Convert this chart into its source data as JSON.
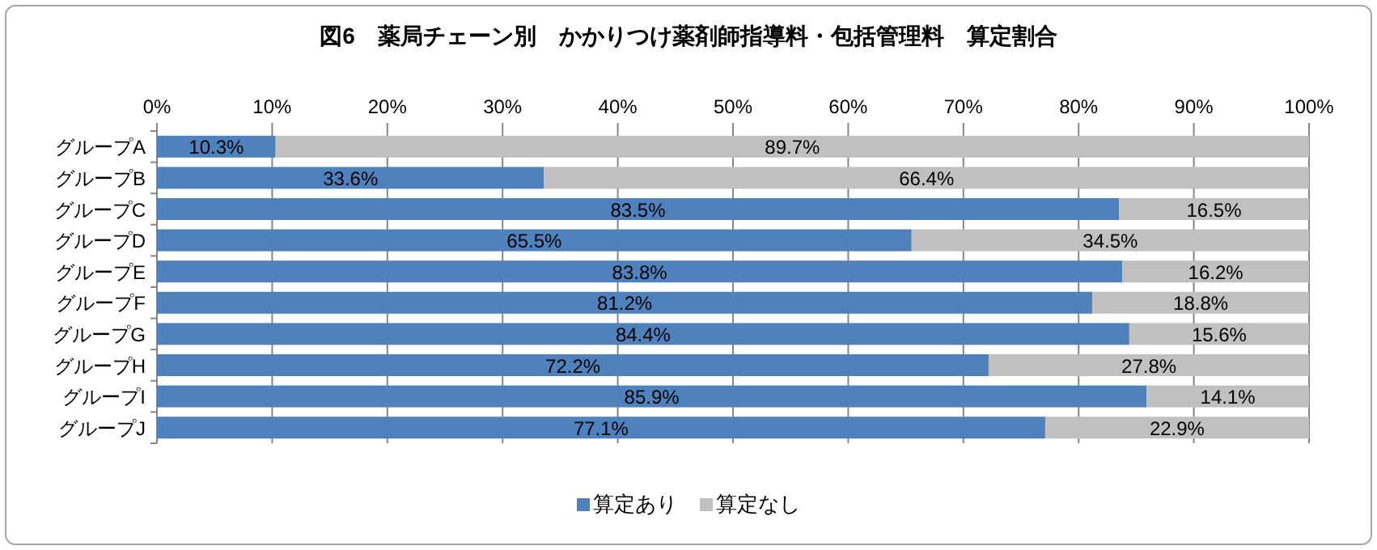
{
  "chart_data": {
    "type": "bar",
    "orientation": "horizontal",
    "stacked": true,
    "title": "図6　薬局チェーン別　かかりつけ薬剤師指導料・包括管理料　算定割合",
    "categories": [
      "グループA",
      "グループB",
      "グループC",
      "グループD",
      "グループE",
      "グループF",
      "グループG",
      "グループH",
      "グループI",
      "グループJ"
    ],
    "xlim": [
      0,
      100
    ],
    "xticks": [
      {
        "value": 0,
        "label": "0%"
      },
      {
        "value": 10,
        "label": "10%"
      },
      {
        "value": 20,
        "label": "20%"
      },
      {
        "value": 30,
        "label": "30%"
      },
      {
        "value": 40,
        "label": "40%"
      },
      {
        "value": 50,
        "label": "50%"
      },
      {
        "value": 60,
        "label": "60%"
      },
      {
        "value": 70,
        "label": "70%"
      },
      {
        "value": 80,
        "label": "80%"
      },
      {
        "value": 90,
        "label": "90%"
      },
      {
        "value": 100,
        "label": "100%"
      }
    ],
    "series": [
      {
        "name": "算定あり",
        "color": "#4f81bd",
        "values": [
          10.3,
          33.6,
          83.5,
          65.5,
          83.8,
          81.2,
          84.4,
          72.2,
          85.9,
          77.1
        ],
        "value_labels": [
          "10.3%",
          "33.6%",
          "83.5%",
          "65.5%",
          "83.8%",
          "81.2%",
          "84.4%",
          "72.2%",
          "85.9%",
          "77.1%"
        ]
      },
      {
        "name": "算定なし",
        "color": "#c0c0c0",
        "values": [
          89.7,
          66.4,
          16.5,
          34.5,
          16.2,
          18.8,
          15.6,
          27.8,
          14.1,
          22.9
        ],
        "value_labels": [
          "89.7%",
          "66.4%",
          "16.5%",
          "34.5%",
          "16.2%",
          "18.8%",
          "15.6%",
          "27.8%",
          "14.1%",
          "22.9%"
        ]
      }
    ],
    "grid": "x",
    "legend": "bottom"
  }
}
